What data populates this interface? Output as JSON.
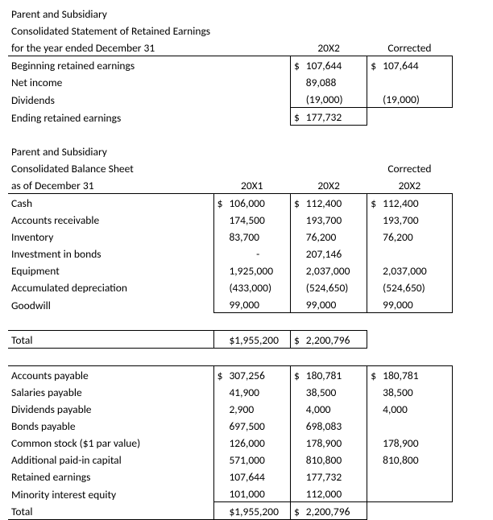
{
  "re": {
    "t1": "Parent and Subsidiary",
    "t2": "Consolidated Statement of Retained Earnings",
    "t3": "for the year ended December 31",
    "h_20x2": "20X2",
    "h_corr": "Corrected",
    "r1": "Beginning retained earnings",
    "r1_de_s": "$",
    "r1_de": "107,644",
    "r1_fg_s": "$",
    "r1_fg": "107,644",
    "r2": "Net income",
    "r2_de": "89,088",
    "r3": "Dividends",
    "r3_de": "(19,000)",
    "r3_fg": "(19,000)",
    "r4": "Ending retained earnings",
    "r4_de_s": "$",
    "r4_de": "177,732"
  },
  "bs": {
    "t1": "Parent and Subsidiary",
    "t2": "Consolidated Balance Sheet",
    "t3": "as of December 31",
    "h_20x1": "20X1",
    "h_20x2": "20X2",
    "h_corr": "Corrected",
    "h_corr2": "20X2",
    "r1": "Cash",
    "r1_bc_s": "$",
    "r1_bc": "106,000",
    "r1_de_s": "$",
    "r1_de": "112,400",
    "r1_fg_s": "$",
    "r1_fg": "112,400",
    "r2": "Accounts receivable",
    "r2_bc": "174,500",
    "r2_de": "193,700",
    "r2_fg": "193,700",
    "r3": "Inventory",
    "r3_bc": "83,700",
    "r3_de": "76,200",
    "r3_fg": "76,200",
    "r4": "Investment in bonds",
    "r4_bc": "-",
    "r4_de": "207,146",
    "r5": "Equipment",
    "r5_bc": "1,925,000",
    "r5_de": "2,037,000",
    "r5_fg": "2,037,000",
    "r6": "Accumulated depreciation",
    "r6_bc": "(433,000)",
    "r6_de": "(524,650)",
    "r6_fg": "(524,650)",
    "r7": "Goodwill",
    "r7_bc": "99,000",
    "r7_de": "99,000",
    "r7_fg": "99,000",
    "tot": "Total",
    "tot_bc": "$1,955,200",
    "tot_de_s": "$",
    "tot_de": "2,200,796",
    "l1": "Accounts payable",
    "l1_bc_s": "$",
    "l1_bc": "307,256",
    "l1_de_s": "$",
    "l1_de": "180,781",
    "l1_fg_s": "$",
    "l1_fg": "180,781",
    "l2": "Salaries payable",
    "l2_bc": "41,900",
    "l2_de": "38,500",
    "l2_fg": "38,500",
    "l3": "Dividends payable",
    "l3_bc": "2,900",
    "l3_de": "4,000",
    "l3_fg": "4,000",
    "l4": "Bonds payable",
    "l4_bc": "697,500",
    "l4_de": "698,083",
    "l5": "Common stock ($1 par value)",
    "l5_bc": "126,000",
    "l5_de": "178,900",
    "l5_fg": "178,900",
    "l6": "Additional paid-in capital",
    "l6_bc": "571,000",
    "l6_de": "810,800",
    "l6_fg": "810,800",
    "l7": "Retained earnings",
    "l7_bc": "107,644",
    "l7_de": "177,732",
    "l8": "Minority interest equity",
    "l8_bc": "101,000",
    "l8_de": "112,000",
    "ltot": "Total",
    "ltot_bc": "$1,955,200",
    "ltot_de_s": "$",
    "ltot_de": "2,200,796"
  }
}
